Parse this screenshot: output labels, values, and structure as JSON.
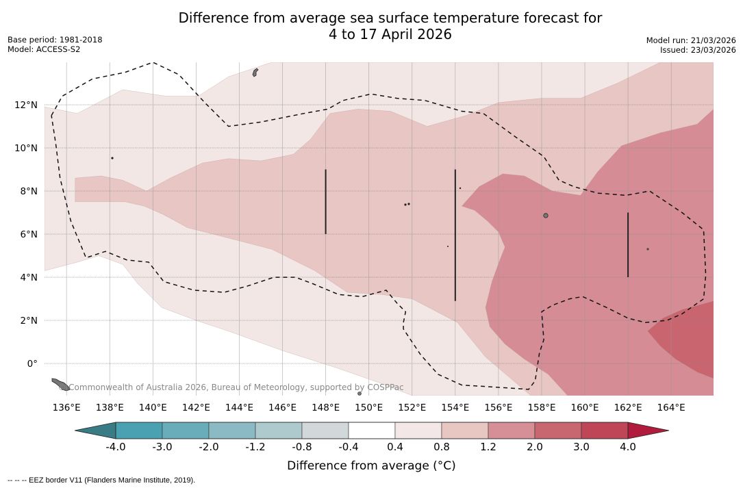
{
  "title": {
    "line1": "Difference from average sea surface temperature forecast for",
    "line2": "4 to 17 April 2026"
  },
  "meta_left": {
    "base_period": "Base period: 1981-2018",
    "model": "Model: ACCESS-S2"
  },
  "meta_right": {
    "model_run": "Model run: 21/03/2026",
    "issued": "Issued: 23/03/2026"
  },
  "map": {
    "extent": {
      "lon": [
        134.98,
        165.96
      ],
      "lat": [
        -1.49,
        13.97
      ]
    },
    "lon_ticks": [
      136,
      138,
      140,
      142,
      144,
      146,
      148,
      150,
      152,
      154,
      156,
      158,
      160,
      162,
      164
    ],
    "lon_tick_labels": [
      "136°E",
      "138°E",
      "140°E",
      "142°E",
      "144°E",
      "146°E",
      "148°E",
      "150°E",
      "152°E",
      "154°E",
      "156°E",
      "158°E",
      "160°E",
      "162°E",
      "164°E"
    ],
    "lat_ticks": [
      0,
      2,
      4,
      6,
      8,
      10,
      12
    ],
    "lat_tick_labels": [
      "0°",
      "2°N",
      "4°N",
      "6°N",
      "8°N",
      "10°N",
      "12°N"
    ],
    "gridlines": true,
    "copyright": "© Commonwealth of Australia 2026, Bureau of Meteorology, supported by COSPPac",
    "anomaly_regions": [
      {
        "name": "0.4 to 0.8",
        "color": "#f3e7e6",
        "polygon_lonlat": [
          [
            134.98,
            11.9
          ],
          [
            136.5,
            11.6
          ],
          [
            138.6,
            12.7
          ],
          [
            140.6,
            12.4
          ],
          [
            142.1,
            12.4
          ],
          [
            143.5,
            13.3
          ],
          [
            145.5,
            13.97
          ],
          [
            165.96,
            13.97
          ],
          [
            165.96,
            -1.49
          ],
          [
            152,
            -1.49
          ],
          [
            150.5,
            -0.9
          ],
          [
            148.5,
            -0.2
          ],
          [
            146,
            0.6
          ],
          [
            143.5,
            1.5
          ],
          [
            142,
            2.0
          ],
          [
            140.4,
            2.6
          ],
          [
            139.3,
            3.7
          ],
          [
            138.6,
            4.6
          ],
          [
            137.5,
            5.0
          ],
          [
            136.5,
            4.7
          ],
          [
            134.98,
            4.3
          ]
        ]
      },
      {
        "name": "0.8 to 1.2",
        "color": "#e8c6c3",
        "polygon_lonlat": [
          [
            136.4,
            8.6
          ],
          [
            137.6,
            8.7
          ],
          [
            138.6,
            8.5
          ],
          [
            139.7,
            8.0
          ],
          [
            140.8,
            8.6
          ],
          [
            142.3,
            9.3
          ],
          [
            143.5,
            9.5
          ],
          [
            145,
            9.4
          ],
          [
            146.5,
            9.7
          ],
          [
            147.3,
            10.4
          ],
          [
            148.2,
            11.6
          ],
          [
            149.5,
            11.8
          ],
          [
            151,
            11.7
          ],
          [
            152.7,
            11.0
          ],
          [
            154.5,
            11.5
          ],
          [
            156,
            12.1
          ],
          [
            158,
            12.3
          ],
          [
            159.8,
            12.3
          ],
          [
            161.5,
            13.0
          ],
          [
            163.5,
            13.97
          ],
          [
            165.96,
            13.97
          ],
          [
            165.96,
            -1.49
          ],
          [
            157.5,
            -1.49
          ],
          [
            155.4,
            0.3
          ],
          [
            154.1,
            1.9
          ],
          [
            152,
            3.0
          ],
          [
            150.6,
            3.2
          ],
          [
            149,
            3.3
          ],
          [
            147.5,
            4.3
          ],
          [
            145.5,
            5.3
          ],
          [
            142.8,
            6.0
          ],
          [
            141.6,
            6.3
          ],
          [
            140.5,
            6.9
          ],
          [
            139.6,
            7.3
          ],
          [
            138.7,
            7.5
          ],
          [
            137.4,
            7.5
          ],
          [
            136.4,
            7.5
          ]
        ]
      },
      {
        "name": "1.2 to 2.0",
        "color": "#d58c94",
        "polygon_lonlat": [
          [
            154.3,
            7.3
          ],
          [
            155.1,
            8.2
          ],
          [
            156.2,
            8.8
          ],
          [
            157.2,
            8.7
          ],
          [
            158.5,
            8.0
          ],
          [
            159.8,
            7.8
          ],
          [
            160.6,
            8.9
          ],
          [
            161.7,
            10.1
          ],
          [
            163.5,
            10.7
          ],
          [
            165.2,
            11.1
          ],
          [
            165.96,
            11.8
          ],
          [
            165.96,
            -1.49
          ],
          [
            159.2,
            -1.49
          ],
          [
            158.3,
            -0.5
          ],
          [
            157.2,
            0.2
          ],
          [
            156.3,
            0.9
          ],
          [
            155.6,
            1.7
          ],
          [
            155.4,
            2.6
          ],
          [
            155.7,
            3.8
          ],
          [
            156.1,
            4.9
          ],
          [
            156.3,
            5.4
          ],
          [
            156.0,
            6.1
          ],
          [
            155.5,
            6.6
          ],
          [
            154.9,
            7.1
          ]
        ]
      },
      {
        "name": "2.0 to 3.0",
        "color": "#c9656f",
        "polygon_lonlat": [
          [
            162.9,
            1.5
          ],
          [
            163.6,
            2.1
          ],
          [
            164.5,
            2.5
          ],
          [
            165.96,
            2.9
          ],
          [
            165.96,
            -0.7
          ],
          [
            165.2,
            -0.4
          ],
          [
            164.2,
            0.2
          ],
          [
            163.5,
            0.8
          ]
        ]
      }
    ],
    "eez_border_lonlat": [
      [
        [
          135.3,
          11.5
        ],
        [
          135.8,
          12.4
        ],
        [
          137.2,
          13.2
        ],
        [
          138.7,
          13.5
        ],
        [
          140,
          13.97
        ],
        [
          141.2,
          13.4
        ],
        [
          142.4,
          12.1
        ],
        [
          143.5,
          11.0
        ],
        [
          145,
          11.2
        ],
        [
          147,
          11.6
        ],
        [
          148.1,
          11.8
        ],
        [
          148.8,
          12.2
        ],
        [
          150.1,
          12.5
        ],
        [
          151.3,
          12.3
        ],
        [
          152.6,
          12.2
        ],
        [
          154.3,
          11.7
        ],
        [
          155.3,
          11.6
        ],
        [
          156.8,
          10.5
        ],
        [
          158.1,
          9.6
        ],
        [
          158.8,
          8.5
        ],
        [
          159.5,
          8.2
        ],
        [
          160.6,
          7.9
        ],
        [
          161.9,
          7.8
        ],
        [
          163.0,
          8.0
        ],
        [
          164.5,
          7.0
        ],
        [
          165.5,
          6.2
        ],
        [
          165.6,
          4.1
        ],
        [
          165.5,
          3.0
        ],
        [
          164.5,
          2.3
        ],
        [
          163.8,
          2.0
        ],
        [
          162.8,
          1.9
        ],
        [
          162,
          2.1
        ],
        [
          161,
          2.6
        ],
        [
          159.9,
          3.1
        ],
        [
          159.3,
          3.0
        ],
        [
          158.5,
          2.7
        ],
        [
          158.0,
          2.4
        ],
        [
          158.1,
          1.1
        ],
        [
          157.9,
          0.5
        ],
        [
          157.7,
          -0.8
        ],
        [
          157.4,
          -1.2
        ],
        [
          155.9,
          -1.1
        ],
        [
          154.3,
          -1.0
        ],
        [
          153.2,
          -0.5
        ],
        [
          152.4,
          0.4
        ],
        [
          151.6,
          1.6
        ],
        [
          151.6,
          1.9
        ],
        [
          151.7,
          2.4
        ],
        [
          151.3,
          2.8
        ],
        [
          150.8,
          3.4
        ],
        [
          149.7,
          3.1
        ],
        [
          148.6,
          3.2
        ],
        [
          147.4,
          3.7
        ],
        [
          146.6,
          4.0
        ],
        [
          145.6,
          4.0
        ],
        [
          144.4,
          3.6
        ],
        [
          143.3,
          3.3
        ],
        [
          141.9,
          3.4
        ],
        [
          140.5,
          3.8
        ],
        [
          139.8,
          4.7
        ],
        [
          138.8,
          4.8
        ],
        [
          137.8,
          5.2
        ],
        [
          136.9,
          4.9
        ],
        [
          136.2,
          6.6
        ],
        [
          135.7,
          8.6
        ],
        [
          135.5,
          10.2
        ],
        [
          135.3,
          11.5
        ]
      ]
    ],
    "markers": [
      {
        "name": "solid-line-148E",
        "lon": 148,
        "lat_from": 6.0,
        "lat_to": 9.0
      },
      {
        "name": "solid-line-154E",
        "lon": 154,
        "lat_from": 2.9,
        "lat_to": 9.0
      },
      {
        "name": "solid-line-162E",
        "lon": 162,
        "lat_from": 4.0,
        "lat_to": 7.0
      }
    ]
  },
  "colorbar": {
    "label": "Difference from average (°C)",
    "bounds": [
      -4.0,
      -3.0,
      -2.0,
      -1.2,
      -0.8,
      -0.4,
      0.4,
      0.8,
      1.2,
      2.0,
      3.0,
      4.0
    ],
    "tick_labels": [
      "-4.0",
      "-3.0",
      "-2.0",
      "-1.2",
      "-0.8",
      "-0.4",
      "0.4",
      "0.8",
      "1.2",
      "2.0",
      "3.0",
      "4.0"
    ],
    "colors": [
      "#49a1b2",
      "#6aadba",
      "#8cbac4",
      "#aecacd",
      "#d2d7da",
      "#ffffff",
      "#f4e7e7",
      "#e8c6c2",
      "#d68f96",
      "#c96770",
      "#bf4656"
    ],
    "extend_min_color": "#397c86",
    "extend_max_color": "#b21c3c"
  },
  "footer": {
    "note": "--  --  -- EEZ border V11 (Flanders Marine Institute, 2019)."
  }
}
